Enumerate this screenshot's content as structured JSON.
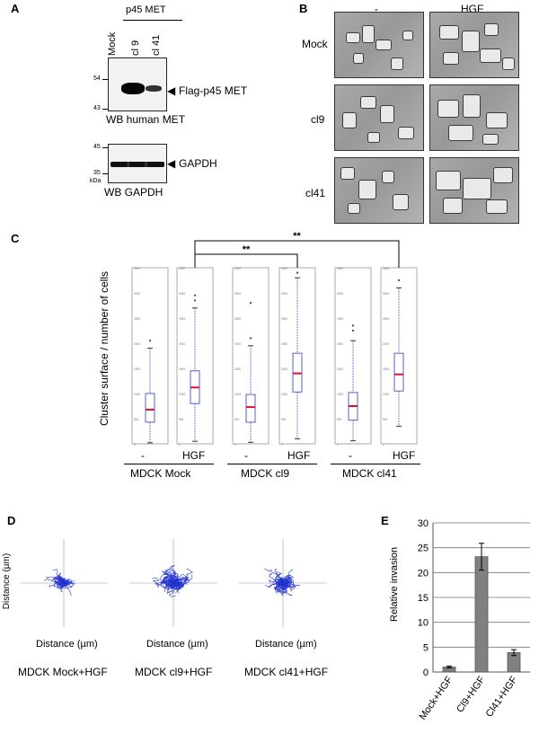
{
  "panel_a": {
    "label": "A",
    "group_label": "p45 MET",
    "lanes": [
      "Mock",
      "cl 9",
      "cl 41"
    ],
    "top_blot": {
      "mw_markers": [
        "54",
        "43"
      ],
      "band_label": "Flag-p45 MET",
      "caption": "WB human MET"
    },
    "bottom_blot": {
      "mw_markers": [
        "45",
        "35"
      ],
      "mw_unit": "kDa",
      "band_label": "GAPDH",
      "caption": "WB GAPDH"
    }
  },
  "panel_b": {
    "label": "B",
    "columns": [
      "-",
      "HGF"
    ],
    "rows": [
      "Mock",
      "cl9",
      "cl41"
    ]
  },
  "panel_c": {
    "label": "C",
    "ylabel": "Cluster surface / number of cells",
    "ticks": [
      "3500",
      "3000",
      "2500",
      "2000",
      "1500",
      "1000",
      "500",
      "0"
    ],
    "treatments": [
      "-",
      "HGF",
      "-",
      "HGF",
      "-",
      "HGF"
    ],
    "groups": [
      "MDCK Mock",
      "MDCK cl9",
      "MDCK cl41"
    ],
    "sig": [
      "**",
      "**"
    ]
  },
  "panel_d": {
    "label": "D",
    "ylabel": "Distance (µm)",
    "xlabel": "Distance (µm)",
    "captions": [
      "MDCK Mock+HGF",
      "MDCK cl9+HGF",
      "MDCK cl41+HGF"
    ],
    "track_color": "#2233cc"
  },
  "panel_e": {
    "label": "E",
    "ylabel": "Relative invasion",
    "bar_color": "#808080"
  },
  "chart_data": [
    {
      "type": "box",
      "title": "",
      "ylabel": "Cluster surface / number of cells",
      "ylim": [
        0,
        3500
      ],
      "categories": [
        "Mock -",
        "Mock HGF",
        "cl9 -",
        "cl9 HGF",
        "cl41 -",
        "cl41 HGF"
      ],
      "medians": [
        680,
        1120,
        730,
        1400,
        750,
        1380
      ],
      "q1": [
        430,
        800,
        430,
        1030,
        470,
        1050
      ],
      "q3": [
        1000,
        1450,
        980,
        1800,
        1020,
        1800
      ],
      "whisker_low": [
        20,
        50,
        30,
        100,
        60,
        350
      ],
      "whisker_high": [
        1900,
        2700,
        1950,
        3300,
        2050,
        3100
      ],
      "outliers": [
        [
          2050
        ],
        [
          2850,
          2950
        ],
        [
          2100,
          2800
        ],
        [
          3400
        ],
        [
          2250,
          2350
        ],
        [
          3250
        ]
      ],
      "significance": [
        {
          "from": "Mock HGF",
          "to": "cl9 HGF",
          "label": "**"
        },
        {
          "from": "Mock HGF",
          "to": "cl41 HGF",
          "label": "**"
        }
      ]
    },
    {
      "type": "bar",
      "title": "",
      "xlabel": "",
      "ylabel": "Relative invasion",
      "categories": [
        "Mock+HGF",
        "Cl9+HGF",
        "Cl41+HGF"
      ],
      "values": [
        1.0,
        23.2,
        3.9
      ],
      "errors": [
        0.2,
        2.7,
        0.6
      ],
      "ylim": [
        0,
        30
      ],
      "yticks": [
        0,
        5,
        10,
        15,
        20,
        25,
        30
      ]
    }
  ]
}
